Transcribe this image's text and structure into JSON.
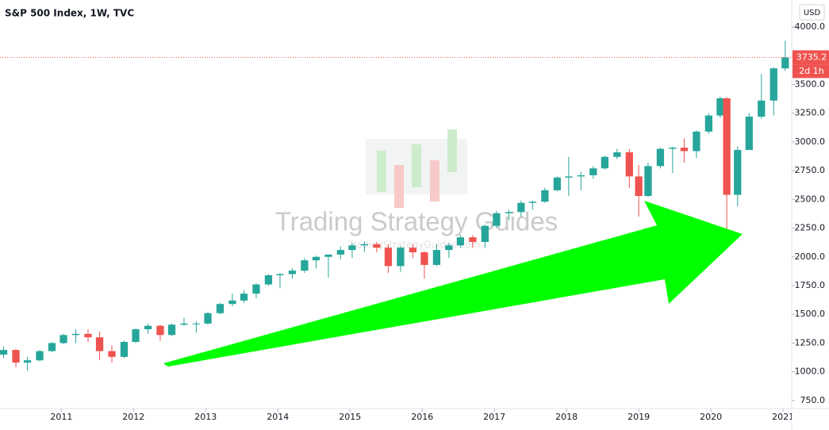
{
  "chart_data": {
    "type": "candlestick",
    "title": "S&P 500 Index, 1W, TVC",
    "currency": "USD",
    "watermark": "Trading Strategy Guides",
    "watermark_url": "TradingStrategyGuides.com",
    "last_price": 3735.2,
    "countdown": "2d 1h",
    "up_color": "#26a69a",
    "down_color": "#ef5350",
    "grid": false,
    "xlim": [
      2010.15,
      2021.12
    ],
    "xticks": [
      2011,
      2012,
      2013,
      2014,
      2015,
      2016,
      2017,
      2018,
      2019,
      2020,
      2021
    ],
    "ylim": [
      680,
      4235
    ],
    "yticks": [
      {
        "value": 750,
        "label": "750.0"
      },
      {
        "value": 1000,
        "label": "1000.0"
      },
      {
        "value": 1250,
        "label": "1250.0"
      },
      {
        "value": 1500,
        "label": "1500.0"
      },
      {
        "value": 1750,
        "label": "1750.0"
      },
      {
        "value": 2000,
        "label": "2000.0"
      },
      {
        "value": 2250,
        "label": "2250.0"
      },
      {
        "value": 2500,
        "label": "2500.0"
      },
      {
        "value": 2750,
        "label": "2750.0"
      },
      {
        "value": 3000,
        "label": "3000.0"
      },
      {
        "value": 3250,
        "label": "3250.0"
      },
      {
        "value": 3500,
        "label": "3500.0"
      },
      {
        "value": 3750,
        "label": "3750.0"
      },
      {
        "value": 4000,
        "label": "4000.0"
      }
    ],
    "x": [
      2010.2,
      2010.37,
      2010.53,
      2010.7,
      2010.87,
      2011.03,
      2011.2,
      2011.37,
      2011.53,
      2011.7,
      2011.87,
      2012.03,
      2012.2,
      2012.37,
      2012.53,
      2012.7,
      2012.87,
      2013.03,
      2013.2,
      2013.37,
      2013.53,
      2013.7,
      2013.87,
      2014.03,
      2014.2,
      2014.37,
      2014.53,
      2014.7,
      2014.87,
      2015.03,
      2015.2,
      2015.37,
      2015.53,
      2015.7,
      2015.87,
      2016.03,
      2016.2,
      2016.37,
      2016.53,
      2016.7,
      2016.87,
      2017.03,
      2017.2,
      2017.37,
      2017.53,
      2017.7,
      2017.87,
      2018.03,
      2018.2,
      2018.37,
      2018.53,
      2018.7,
      2018.87,
      2019.0,
      2019.13,
      2019.3,
      2019.47,
      2019.63,
      2019.8,
      2019.97,
      2020.13,
      2020.22,
      2020.37,
      2020.53,
      2020.7,
      2020.87,
      2021.03
    ],
    "open": [
      1150,
      1190,
      1080,
      1100,
      1180,
      1250,
      1320,
      1330,
      1300,
      1180,
      1130,
      1260,
      1370,
      1400,
      1320,
      1410,
      1420,
      1420,
      1510,
      1590,
      1620,
      1680,
      1760,
      1840,
      1850,
      1880,
      1970,
      2000,
      2020,
      2060,
      2100,
      2110,
      2080,
      1920,
      2080,
      2040,
      1930,
      2060,
      2100,
      2170,
      2130,
      2270,
      2380,
      2390,
      2470,
      2480,
      2580,
      2690,
      2700,
      2710,
      2770,
      2870,
      2910,
      2700,
      2530,
      2790,
      2940,
      2950,
      2920,
      3090,
      3230,
      3380,
      2540,
      2930,
      3220,
      3360,
      3640
    ],
    "high": [
      1220,
      1200,
      1130,
      1190,
      1260,
      1330,
      1370,
      1370,
      1350,
      1230,
      1270,
      1380,
      1420,
      1410,
      1420,
      1470,
      1440,
      1520,
      1600,
      1680,
      1710,
      1770,
      1850,
      1860,
      1900,
      1990,
      2010,
      2020,
      2090,
      2120,
      2135,
      2130,
      2110,
      2090,
      2110,
      2050,
      2110,
      2120,
      2190,
      2190,
      2280,
      2400,
      2410,
      2490,
      2490,
      2600,
      2700,
      2870,
      2740,
      2790,
      2880,
      2940,
      2940,
      2800,
      2820,
      2950,
      2960,
      3030,
      3100,
      3250,
      3395,
      3390,
      2960,
      3250,
      3590,
      3650,
      3880
    ],
    "low": [
      1120,
      1040,
      1010,
      1090,
      1170,
      1240,
      1250,
      1260,
      1100,
      1080,
      1120,
      1250,
      1330,
      1270,
      1310,
      1400,
      1340,
      1410,
      1500,
      1570,
      1600,
      1640,
      1750,
      1730,
      1810,
      1860,
      1900,
      1820,
      1980,
      1990,
      2040,
      2040,
      1860,
      1870,
      1990,
      1810,
      1920,
      1990,
      2080,
      2080,
      2080,
      2250,
      2320,
      2350,
      2410,
      2470,
      2570,
      2530,
      2580,
      2680,
      2760,
      2850,
      2600,
      2350,
      2520,
      2770,
      2730,
      2820,
      2860,
      3070,
      3210,
      2190,
      2440,
      2930,
      3200,
      3230,
      3620
    ],
    "close": [
      1190,
      1080,
      1100,
      1180,
      1250,
      1320,
      1330,
      1300,
      1180,
      1130,
      1260,
      1370,
      1400,
      1320,
      1410,
      1420,
      1420,
      1510,
      1590,
      1620,
      1680,
      1760,
      1840,
      1850,
      1880,
      1970,
      2000,
      2020,
      2060,
      2100,
      2110,
      2080,
      1920,
      2080,
      2040,
      1930,
      2060,
      2100,
      2170,
      2130,
      2270,
      2380,
      2390,
      2470,
      2480,
      2580,
      2690,
      2700,
      2710,
      2770,
      2870,
      2910,
      2700,
      2530,
      2790,
      2940,
      2950,
      2920,
      3090,
      3230,
      3380,
      2540,
      2930,
      3220,
      3360,
      3640,
      3735.2
    ]
  }
}
